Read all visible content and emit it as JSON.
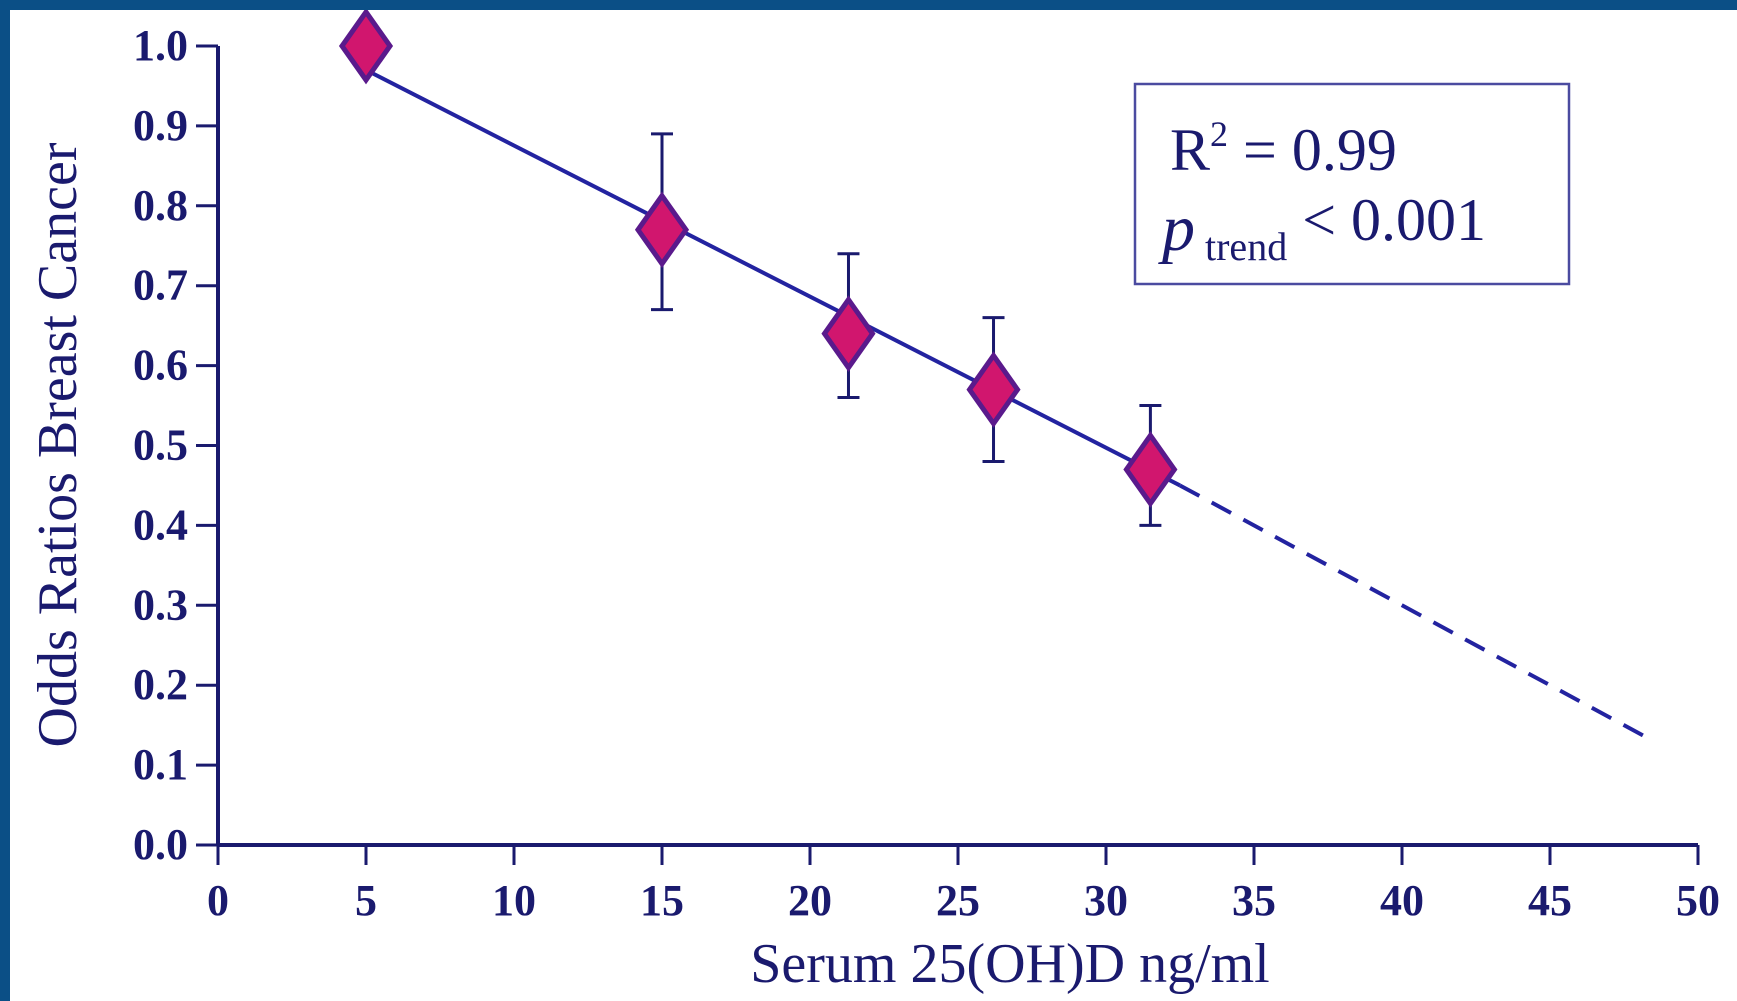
{
  "chart_data": {
    "type": "scatter",
    "xlabel": "Serum 25(OH)D ng/ml",
    "ylabel": "Odds Ratios Breast Cancer",
    "xlim": [
      0,
      50
    ],
    "ylim": [
      0,
      1.0
    ],
    "x_ticks": [
      "0",
      "5",
      "10",
      "15",
      "20",
      "25",
      "30",
      "35",
      "40",
      "45",
      "50"
    ],
    "y_ticks": [
      "0.0",
      "0.1",
      "0.2",
      "0.3",
      "0.4",
      "0.5",
      "0.6",
      "0.7",
      "0.8",
      "0.9",
      "1.0"
    ],
    "grid": false,
    "points": [
      {
        "x": 5,
        "y": 1.0,
        "err_low": 1.0,
        "err_high": 1.0
      },
      {
        "x": 15,
        "y": 0.77,
        "err_low": 0.67,
        "err_high": 0.89
      },
      {
        "x": 21.3,
        "y": 0.64,
        "err_low": 0.56,
        "err_high": 0.74
      },
      {
        "x": 26.2,
        "y": 0.57,
        "err_low": 0.48,
        "err_high": 0.66
      },
      {
        "x": 31.5,
        "y": 0.47,
        "err_low": 0.4,
        "err_high": 0.55
      }
    ],
    "trend_line": {
      "solid": {
        "x1": 5,
        "y1": 0.97,
        "x2": 32.5,
        "y2": 0.45
      },
      "dashed": {
        "x1": 32.5,
        "y1": 0.45,
        "x2": 48.5,
        "y2": 0.13
      }
    },
    "marker_color": "#d1166e",
    "marker_edge_color": "#5a1a8c",
    "line_color": "#2323a0",
    "axis_color": "#1a1a6e",
    "annotation": {
      "r2_label": "R",
      "r2_exp": "2",
      "r2_value": " = 0.99",
      "p_label": "p",
      "p_sub": "trend",
      "p_value": " < 0.001",
      "placement": "top-right"
    }
  }
}
